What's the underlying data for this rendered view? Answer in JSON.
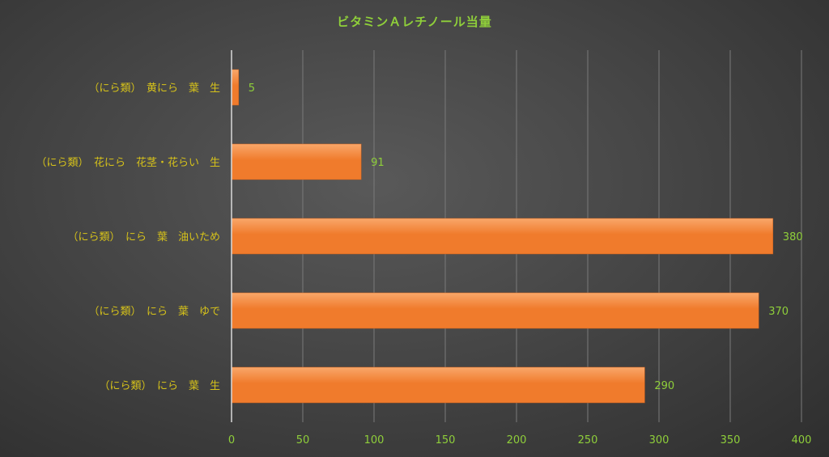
{
  "chart_data": {
    "type": "bar",
    "orientation": "horizontal",
    "title": "ビタミンＡレチノール当量",
    "categories": [
      "（にら類）　黄にら　葉　生",
      "（にら類）　花にら　花茎・花らい　生",
      "（にら類）　にら　葉　油いため",
      "（にら類）　にら　葉　ゆで",
      "（にら類）　にら　葉　生"
    ],
    "values": [
      5,
      91,
      380,
      370,
      290
    ],
    "xlim": [
      0,
      400
    ],
    "xticks": [
      0,
      50,
      100,
      150,
      200,
      250,
      300,
      350,
      400
    ],
    "grid": true,
    "legend": "none",
    "colors": {
      "bar": "#f07b2c",
      "bar_highlight": "#f9a76a",
      "gridline": "#7a7a7a",
      "axis": "#d9d9d9",
      "title": "#8fcf3a",
      "category_label": "#d6c21a",
      "value_label": "#8fcf3a"
    }
  }
}
